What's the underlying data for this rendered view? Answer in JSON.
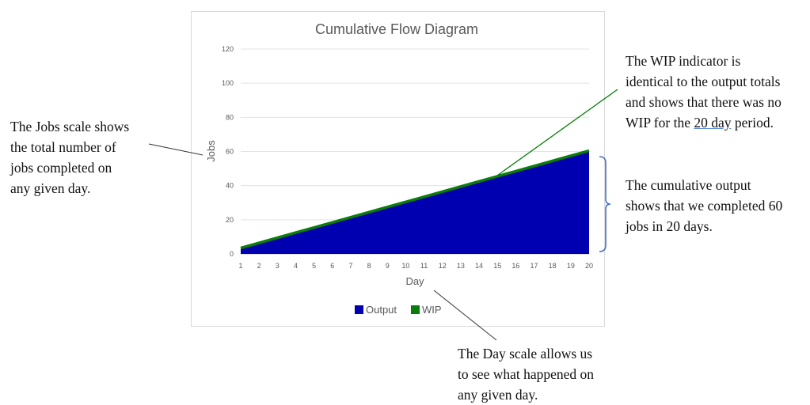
{
  "chart_data": {
    "type": "area",
    "title": "Cumulative Flow Diagram",
    "xlabel": "Day",
    "ylabel": "Jobs",
    "x": [
      1,
      2,
      3,
      4,
      5,
      6,
      7,
      8,
      9,
      10,
      11,
      12,
      13,
      14,
      15,
      16,
      17,
      18,
      19,
      20
    ],
    "ylim": [
      0,
      120
    ],
    "yticks": [
      0,
      20,
      40,
      60,
      80,
      100,
      120
    ],
    "grid": true,
    "legend_position": "bottom",
    "series": [
      {
        "name": "Output",
        "color": "#0000b0",
        "values": [
          3,
          6,
          9,
          12,
          15,
          18,
          21,
          24,
          27,
          30,
          33,
          36,
          39,
          42,
          45,
          48,
          51,
          54,
          57,
          60
        ]
      },
      {
        "name": "WIP",
        "color": "#0a7d0a",
        "values": [
          3,
          6,
          9,
          12,
          15,
          18,
          21,
          24,
          27,
          30,
          33,
          36,
          39,
          42,
          45,
          48,
          51,
          54,
          57,
          60
        ]
      }
    ]
  },
  "annotations": {
    "jobs_scale": "The Jobs scale shows the total number of jobs completed on any given day.",
    "jobs_scale_lines": [
      "The Jobs scale shows",
      "the total number of",
      "jobs completed on",
      "any given day."
    ],
    "wip": {
      "lines_before": [
        "The WIP indicator is",
        "identical to the output totals",
        "and shows that there was no"
      ],
      "last_prefix": "WIP for the ",
      "last_underlined": "20 day",
      "last_suffix": " period."
    },
    "output_lines": [
      "The cumulative output",
      "shows that we completed 60",
      "jobs in 20 days."
    ],
    "day_lines": [
      "The Day scale allows us",
      "to see what happened on",
      "any given day."
    ]
  }
}
